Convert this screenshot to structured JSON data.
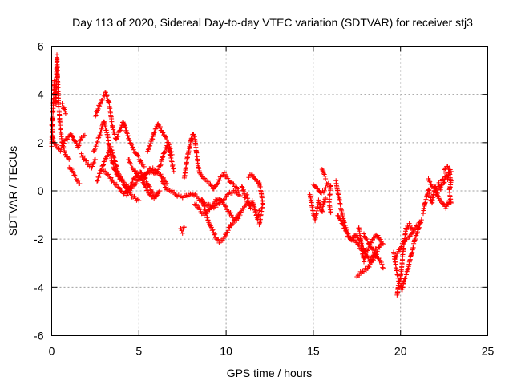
{
  "chart_data": {
    "type": "scatter",
    "title": "Day 113 of 2020, Sidereal Day-to-day VTEC variation (SDTVAR) for receiver stj3",
    "xlabel": "GPS time / hours",
    "ylabel": "SDTVAR / TECUs",
    "xlim": [
      0,
      25
    ],
    "ylim": [
      -6,
      6
    ],
    "xticks": [
      0,
      5,
      10,
      15,
      20,
      25
    ],
    "yticks": [
      -6,
      -4,
      -2,
      0,
      2,
      4,
      6
    ],
    "xtick_labels": [
      "0",
      "5",
      "10",
      "15",
      "20",
      "25"
    ],
    "ytick_labels": [
      "-6",
      "-4",
      "-2",
      "0",
      "2",
      "4",
      "6"
    ],
    "grid": true,
    "marker": "plus",
    "color": "#ff0000",
    "tracks": [
      [
        [
          0.0,
          1.9
        ],
        [
          0.15,
          4.6
        ],
        [
          0.25,
          3.6
        ],
        [
          0.3,
          5.6
        ],
        [
          0.4,
          3.5
        ],
        [
          0.5,
          2.6
        ],
        [
          0.6,
          2.0
        ],
        [
          0.8,
          1.5
        ],
        [
          1.0,
          1.3
        ]
      ],
      [
        [
          0.0,
          2.7
        ],
        [
          0.1,
          2.0
        ],
        [
          0.3,
          1.8
        ],
        [
          0.5,
          1.7
        ],
        [
          0.7,
          2.0
        ],
        [
          0.9,
          2.2
        ],
        [
          1.1,
          2.4
        ],
        [
          1.3,
          2.1
        ],
        [
          1.5,
          1.8
        ],
        [
          1.7,
          2.2
        ],
        [
          1.9,
          2.3
        ]
      ],
      [
        [
          0.6,
          3.6
        ],
        [
          0.7,
          3.4
        ],
        [
          0.8,
          3.2
        ]
      ],
      [
        [
          1.0,
          1.0
        ],
        [
          1.2,
          0.8
        ],
        [
          1.4,
          0.5
        ],
        [
          1.6,
          0.3
        ]
      ],
      [
        [
          1.7,
          1.5
        ],
        [
          1.9,
          1.3
        ],
        [
          2.1,
          1.1
        ],
        [
          2.3,
          1.0
        ],
        [
          2.5,
          1.3
        ]
      ],
      [
        [
          2.5,
          3.1
        ],
        [
          2.7,
          3.5
        ],
        [
          2.9,
          3.8
        ],
        [
          3.1,
          4.1
        ],
        [
          3.3,
          3.6
        ],
        [
          3.5,
          2.6
        ],
        [
          3.7,
          2.1
        ],
        [
          3.9,
          2.5
        ],
        [
          4.1,
          2.9
        ],
        [
          4.3,
          2.4
        ],
        [
          4.5,
          2.0
        ],
        [
          4.7,
          1.7
        ],
        [
          4.9,
          1.5
        ],
        [
          5.1,
          1.2
        ],
        [
          5.3,
          1.0
        ]
      ],
      [
        [
          2.6,
          0.4
        ],
        [
          2.8,
          0.8
        ],
        [
          3.0,
          1.2
        ],
        [
          3.2,
          1.5
        ],
        [
          3.4,
          1.8
        ],
        [
          3.6,
          1.3
        ],
        [
          3.8,
          0.8
        ],
        [
          4.0,
          0.5
        ],
        [
          4.2,
          0.2
        ],
        [
          4.4,
          0.0
        ],
        [
          4.6,
          -0.2
        ],
        [
          4.8,
          -0.3
        ],
        [
          5.0,
          -0.4
        ]
      ],
      [
        [
          2.4,
          1.6
        ],
        [
          2.6,
          2.0
        ],
        [
          2.8,
          2.4
        ],
        [
          3.0,
          2.9
        ],
        [
          3.2,
          2.3
        ],
        [
          3.4,
          1.4
        ],
        [
          3.6,
          0.9
        ],
        [
          3.8,
          0.6
        ],
        [
          4.0,
          0.4
        ],
        [
          4.2,
          0.3
        ],
        [
          4.4,
          0.2
        ]
      ],
      [
        [
          3.0,
          0.8
        ],
        [
          3.2,
          0.7
        ],
        [
          3.4,
          0.5
        ],
        [
          3.6,
          0.3
        ],
        [
          3.8,
          0.2
        ],
        [
          4.0,
          0.0
        ],
        [
          4.2,
          -0.1
        ],
        [
          4.4,
          0.0
        ],
        [
          4.6,
          0.1
        ],
        [
          4.8,
          0.3
        ],
        [
          5.0,
          0.5
        ],
        [
          5.2,
          0.6
        ],
        [
          5.4,
          0.7
        ],
        [
          5.6,
          0.8
        ],
        [
          5.8,
          0.9
        ],
        [
          6.0,
          0.8
        ],
        [
          6.2,
          0.7
        ],
        [
          6.4,
          0.5
        ],
        [
          6.6,
          0.3
        ]
      ],
      [
        [
          4.3,
          -0.2
        ],
        [
          4.5,
          0.2
        ],
        [
          4.7,
          0.5
        ],
        [
          4.9,
          0.7
        ],
        [
          5.1,
          0.8
        ],
        [
          5.3,
          0.6
        ],
        [
          5.5,
          0.3
        ],
        [
          5.7,
          0.0
        ],
        [
          5.9,
          -0.2
        ],
        [
          6.1,
          -0.1
        ]
      ],
      [
        [
          4.4,
          1.3
        ],
        [
          4.6,
          1.0
        ],
        [
          4.8,
          0.8
        ],
        [
          5.0,
          0.6
        ],
        [
          5.2,
          0.4
        ],
        [
          5.4,
          0.1
        ],
        [
          5.6,
          -0.1
        ],
        [
          5.8,
          -0.3
        ],
        [
          6.0,
          -0.2
        ],
        [
          6.2,
          0.0
        ]
      ],
      [
        [
          5.3,
          0.5
        ],
        [
          5.6,
          0.9
        ],
        [
          5.9,
          0.7
        ],
        [
          6.2,
          1.0
        ],
        [
          6.4,
          1.5
        ],
        [
          6.6,
          1.9
        ],
        [
          6.8,
          1.5
        ],
        [
          7.0,
          0.8
        ]
      ],
      [
        [
          5.5,
          1.6
        ],
        [
          5.7,
          2.0
        ],
        [
          5.9,
          2.5
        ],
        [
          6.1,
          2.8
        ],
        [
          6.3,
          2.5
        ],
        [
          6.5,
          2.2
        ],
        [
          6.7,
          2.0
        ],
        [
          6.8,
          1.7
        ],
        [
          6.9,
          1.5
        ]
      ],
      [
        [
          6.3,
          0.4
        ],
        [
          6.6,
          0.1
        ],
        [
          6.9,
          0.0
        ],
        [
          7.2,
          -0.2
        ],
        [
          7.5,
          -0.3
        ],
        [
          7.8,
          -0.2
        ],
        [
          8.1,
          -0.1
        ],
        [
          8.4,
          -0.3
        ],
        [
          8.7,
          -0.5
        ],
        [
          9.0,
          -0.6
        ],
        [
          9.3,
          -0.7
        ],
        [
          9.6,
          -0.5
        ],
        [
          9.9,
          -0.3
        ],
        [
          10.2,
          -0.1
        ],
        [
          10.5,
          0.0
        ],
        [
          10.8,
          -0.2
        ]
      ],
      [
        [
          7.4,
          -1.6
        ],
        [
          7.5,
          -1.7
        ],
        [
          7.6,
          -1.5
        ]
      ],
      [
        [
          7.6,
          0.5
        ],
        [
          7.7,
          1.0
        ],
        [
          7.8,
          1.5
        ],
        [
          7.9,
          1.8
        ],
        [
          8.0,
          2.1
        ],
        [
          8.1,
          2.4
        ],
        [
          8.2,
          2.2
        ],
        [
          8.3,
          1.6
        ],
        [
          8.4,
          1.0
        ],
        [
          8.5,
          0.7
        ],
        [
          8.7,
          0.5
        ],
        [
          8.9,
          0.4
        ],
        [
          9.1,
          0.3
        ],
        [
          9.3,
          0.1
        ],
        [
          9.5,
          0.3
        ],
        [
          9.7,
          0.6
        ],
        [
          9.9,
          0.7
        ],
        [
          10.1,
          0.5
        ],
        [
          10.3,
          0.3
        ],
        [
          10.5,
          0.2
        ],
        [
          10.7,
          0.0
        ]
      ],
      [
        [
          8.6,
          -0.3
        ],
        [
          8.8,
          -0.8
        ],
        [
          9.0,
          -1.3
        ],
        [
          9.2,
          -1.6
        ],
        [
          9.4,
          -1.9
        ],
        [
          9.6,
          -2.1
        ],
        [
          9.8,
          -2.0
        ],
        [
          10.0,
          -1.8
        ],
        [
          10.2,
          -1.5
        ],
        [
          10.4,
          -1.3
        ],
        [
          10.6,
          -1.1
        ],
        [
          10.8,
          -0.9
        ],
        [
          11.0,
          -0.7
        ],
        [
          11.2,
          -0.5
        ],
        [
          11.4,
          -0.6
        ]
      ],
      [
        [
          8.2,
          -0.5
        ],
        [
          8.4,
          -0.7
        ],
        [
          8.6,
          -0.9
        ],
        [
          8.8,
          -1.0
        ],
        [
          9.0,
          -0.8
        ],
        [
          9.2,
          -0.6
        ],
        [
          9.4,
          -0.4
        ],
        [
          9.6,
          -0.3
        ],
        [
          9.8,
          -0.5
        ],
        [
          10.0,
          -0.7
        ],
        [
          10.2,
          -0.9
        ],
        [
          10.4,
          -1.1
        ],
        [
          10.6,
          -1.2
        ],
        [
          10.8,
          -1.0
        ]
      ],
      [
        [
          10.9,
          0.2
        ],
        [
          11.0,
          0.0
        ],
        [
          11.1,
          -0.3
        ],
        [
          11.2,
          -0.2
        ],
        [
          11.3,
          -0.5
        ],
        [
          11.4,
          -0.7
        ],
        [
          11.5,
          -0.4
        ],
        [
          11.6,
          -0.6
        ],
        [
          11.7,
          -0.9
        ],
        [
          11.8,
          -1.2
        ],
        [
          11.9,
          -0.8
        ]
      ],
      [
        [
          11.3,
          0.6
        ],
        [
          11.5,
          0.7
        ],
        [
          11.7,
          0.5
        ],
        [
          11.9,
          0.3
        ],
        [
          12.0,
          0.0
        ],
        [
          12.1,
          -0.5
        ],
        [
          12.0,
          -1.0
        ],
        [
          11.9,
          -1.4
        ]
      ],
      [
        [
          14.8,
          -0.2
        ],
        [
          14.9,
          -0.5
        ],
        [
          15.0,
          -0.9
        ],
        [
          15.1,
          -1.2
        ],
        [
          15.2,
          -0.8
        ],
        [
          15.3,
          -0.4
        ],
        [
          15.4,
          -0.6
        ],
        [
          15.5,
          -0.9
        ],
        [
          15.6,
          -0.5
        ],
        [
          15.7,
          -0.3
        ]
      ],
      [
        [
          15.0,
          0.3
        ],
        [
          15.2,
          0.1
        ],
        [
          15.4,
          -0.1
        ],
        [
          15.6,
          0.0
        ],
        [
          15.8,
          0.3
        ],
        [
          16.0,
          0.2
        ],
        [
          15.9,
          -0.5
        ],
        [
          16.0,
          -0.9
        ]
      ],
      [
        [
          15.5,
          0.9
        ],
        [
          15.6,
          0.7
        ],
        [
          15.7,
          0.5
        ]
      ],
      [
        [
          16.3,
          0.4
        ],
        [
          16.4,
          0.0
        ],
        [
          16.5,
          -0.4
        ],
        [
          16.6,
          -0.8
        ],
        [
          16.7,
          -1.1
        ],
        [
          16.8,
          -1.4
        ],
        [
          16.9,
          -1.6
        ],
        [
          17.0,
          -1.9
        ],
        [
          17.2,
          -2.0
        ],
        [
          17.4,
          -2.1
        ],
        [
          17.6,
          -2.3
        ],
        [
          17.8,
          -2.4
        ],
        [
          18.0,
          -2.5
        ]
      ],
      [
        [
          16.4,
          -1.0
        ],
        [
          16.6,
          -1.3
        ],
        [
          16.8,
          -1.6
        ],
        [
          17.0,
          -1.8
        ],
        [
          17.2,
          -2.0
        ],
        [
          17.4,
          -1.8
        ],
        [
          17.6,
          -2.0
        ],
        [
          17.8,
          -2.2
        ],
        [
          18.0,
          -2.6
        ],
        [
          18.2,
          -2.9
        ],
        [
          18.4,
          -2.7
        ],
        [
          18.6,
          -2.4
        ]
      ],
      [
        [
          17.6,
          -1.5
        ],
        [
          17.7,
          -2.0
        ],
        [
          17.8,
          -2.5
        ],
        [
          17.9,
          -2.9
        ],
        [
          18.0,
          -2.6
        ],
        [
          18.2,
          -2.3
        ],
        [
          18.4,
          -2.0
        ],
        [
          18.6,
          -1.8
        ],
        [
          18.8,
          -2.0
        ],
        [
          19.0,
          -2.2
        ]
      ],
      [
        [
          17.5,
          -3.5
        ],
        [
          17.7,
          -3.4
        ],
        [
          17.9,
          -3.3
        ],
        [
          18.1,
          -3.2
        ],
        [
          18.3,
          -3.0
        ],
        [
          18.5,
          -2.8
        ],
        [
          18.7,
          -2.4
        ],
        [
          18.9,
          -2.2
        ]
      ],
      [
        [
          17.9,
          -1.8
        ],
        [
          18.1,
          -2.1
        ],
        [
          18.3,
          -2.3
        ],
        [
          18.5,
          -2.5
        ],
        [
          18.7,
          -2.8
        ],
        [
          18.9,
          -3.0
        ],
        [
          19.0,
          -3.2
        ]
      ],
      [
        [
          19.6,
          -2.5
        ],
        [
          19.7,
          -3.0
        ],
        [
          19.8,
          -3.4
        ],
        [
          19.9,
          -3.8
        ],
        [
          19.8,
          -4.3
        ],
        [
          20.0,
          -3.6
        ],
        [
          20.1,
          -2.9
        ],
        [
          20.2,
          -2.2
        ],
        [
          20.3,
          -1.6
        ],
        [
          20.5,
          -1.4
        ],
        [
          20.7,
          -1.6
        ]
      ],
      [
        [
          20.0,
          -3.9
        ],
        [
          20.1,
          -4.1
        ],
        [
          20.2,
          -3.7
        ],
        [
          20.4,
          -3.3
        ],
        [
          20.6,
          -2.7
        ],
        [
          20.8,
          -2.1
        ],
        [
          21.0,
          -1.6
        ],
        [
          21.2,
          -1.2
        ]
      ],
      [
        [
          19.7,
          -2.8
        ],
        [
          19.9,
          -2.5
        ],
        [
          20.1,
          -2.2
        ],
        [
          20.3,
          -2.0
        ],
        [
          20.5,
          -1.9
        ],
        [
          20.7,
          -1.7
        ],
        [
          20.9,
          -1.5
        ],
        [
          21.1,
          -1.3
        ]
      ],
      [
        [
          21.3,
          -0.9
        ],
        [
          21.4,
          -0.5
        ],
        [
          21.5,
          -0.2
        ],
        [
          21.6,
          0.1
        ],
        [
          21.7,
          -0.2
        ],
        [
          21.8,
          -0.5
        ],
        [
          21.9,
          -0.1
        ],
        [
          22.0,
          0.2
        ],
        [
          22.1,
          -0.2
        ],
        [
          22.2,
          0.3
        ],
        [
          22.3,
          0.1
        ],
        [
          22.4,
          0.5
        ],
        [
          22.5,
          0.3
        ],
        [
          22.6,
          0.7
        ],
        [
          22.7,
          0.5
        ],
        [
          22.8,
          0.8
        ],
        [
          22.9,
          0.4
        ],
        [
          22.8,
          0.0
        ],
        [
          22.9,
          -0.5
        ]
      ],
      [
        [
          21.6,
          0.5
        ],
        [
          21.8,
          0.2
        ],
        [
          22.0,
          0.0
        ],
        [
          22.2,
          -0.3
        ],
        [
          22.4,
          -0.5
        ],
        [
          22.6,
          -0.7
        ],
        [
          22.8,
          -0.4
        ]
      ],
      [
        [
          22.5,
          0.9
        ],
        [
          22.7,
          1.0
        ],
        [
          22.8,
          0.9
        ],
        [
          22.9,
          0.8
        ]
      ]
    ]
  }
}
